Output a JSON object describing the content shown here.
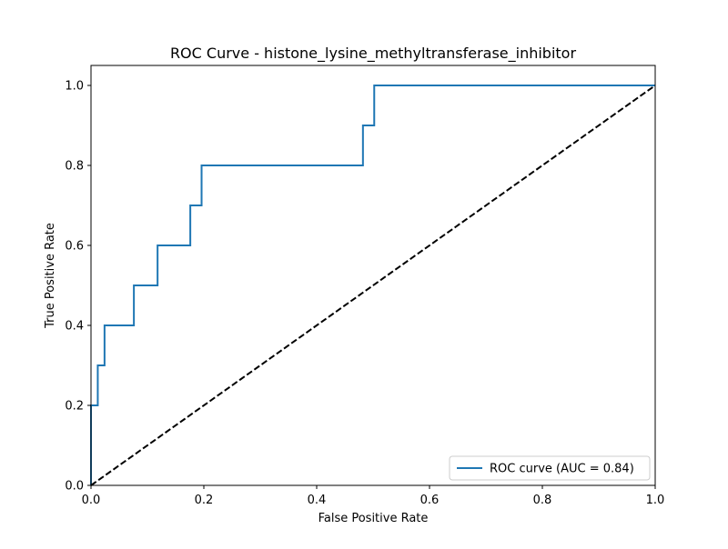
{
  "chart_data": {
    "type": "line",
    "title": "ROC Curve - histone_lysine_methyltransferase_inhibitor",
    "xlabel": "False Positive Rate",
    "ylabel": "True Positive Rate",
    "xlim": [
      0.0,
      1.0
    ],
    "ylim": [
      0.0,
      1.05
    ],
    "xticks": [
      0.0,
      0.2,
      0.4,
      0.6,
      0.8,
      1.0
    ],
    "yticks": [
      0.0,
      0.2,
      0.4,
      0.6,
      0.8,
      1.0
    ],
    "xtick_labels": [
      "0.0",
      "0.2",
      "0.4",
      "0.6",
      "0.8",
      "1.0"
    ],
    "ytick_labels": [
      "0.0",
      "0.2",
      "0.4",
      "0.6",
      "0.8",
      "1.0"
    ],
    "grid": false,
    "legend_position": "lower-right",
    "series": [
      {
        "name": "ROC curve (AUC = 0.84)",
        "color": "#1f77b4",
        "style": "solid",
        "x": [
          0.0,
          0.0,
          0.0,
          0.012,
          0.012,
          0.024,
          0.024,
          0.076,
          0.076,
          0.118,
          0.118,
          0.176,
          0.176,
          0.196,
          0.196,
          0.482,
          0.482,
          0.502,
          0.502,
          1.0
        ],
        "y": [
          0.0,
          0.1,
          0.2,
          0.2,
          0.3,
          0.3,
          0.4,
          0.4,
          0.5,
          0.5,
          0.6,
          0.6,
          0.7,
          0.7,
          0.8,
          0.8,
          0.9,
          0.9,
          1.0,
          1.0
        ]
      },
      {
        "color": "#000000",
        "style": "dashed",
        "x": [
          0.0,
          1.0
        ],
        "y": [
          0.0,
          1.0
        ]
      }
    ]
  }
}
